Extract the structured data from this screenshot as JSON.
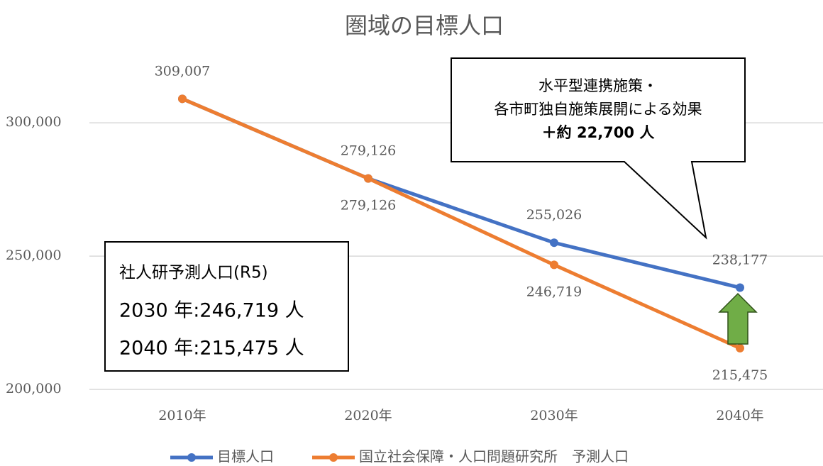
{
  "chart_data": {
    "type": "line",
    "title": "圏域の目標人口",
    "categories": [
      "2010年",
      "2020年",
      "2030年",
      "2040年"
    ],
    "series": [
      {
        "name": "目標人口",
        "color": "#4472c4",
        "values": [
          309007,
          279126,
          255026,
          238177
        ],
        "value_labels": [
          null,
          "279,126",
          "255,026",
          "238,177"
        ]
      },
      {
        "name": "国立社会保障・人口問題研究所　予測人口",
        "color": "#ed7d31",
        "values": [
          309007,
          279126,
          246719,
          215475
        ],
        "value_labels": [
          "309,007",
          "279,126",
          "246,719",
          "215,475"
        ]
      }
    ],
    "ylim": [
      200000,
      320000
    ],
    "yticks": [
      {
        "value": 200000,
        "label": "200,000"
      },
      {
        "value": 250000,
        "label": "250,000"
      },
      {
        "value": 300000,
        "label": "300,000"
      }
    ],
    "grid": true,
    "legend": "bottom",
    "annotations": {
      "callout": [
        "水平型連携施策・",
        "各市町独自施策展開による効果",
        "＋約 22,700 人"
      ],
      "box": [
        "社人研予測人口(R5)",
        "2030 年:246,719 人",
        "2040 年:215,475 人"
      ]
    }
  }
}
